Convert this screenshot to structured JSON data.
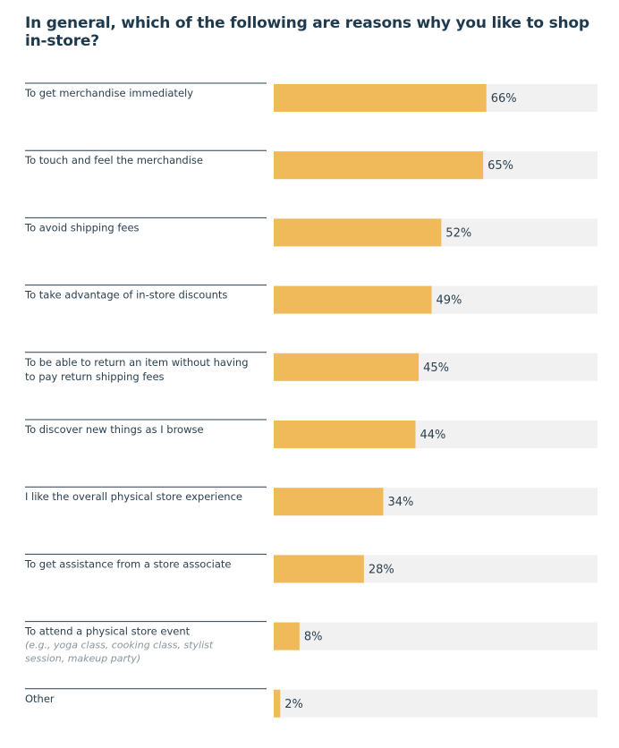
{
  "chart_data": {
    "type": "bar",
    "orientation": "horizontal",
    "title": "In general, which of the following are reasons why you like to shop in-store?",
    "xlim": [
      0,
      100
    ],
    "value_suffix": "%",
    "colors": {
      "bar": "#f0b95a",
      "track": "#f1f1f1",
      "rule": "#2a3f50"
    },
    "categories": [
      {
        "lines": [
          "To get merchandise immediately"
        ],
        "note": [],
        "value": 66
      },
      {
        "lines": [
          "To touch and feel the merchandise"
        ],
        "note": [],
        "value": 65
      },
      {
        "lines": [
          "To avoid shipping fees"
        ],
        "note": [],
        "value": 52
      },
      {
        "lines": [
          "To take advantage of in-store discounts"
        ],
        "note": [],
        "value": 49
      },
      {
        "lines": [
          "To be able to return an item without having",
          "to pay return shipping fees"
        ],
        "note": [],
        "value": 45
      },
      {
        "lines": [
          "To discover new things as I browse"
        ],
        "note": [],
        "value": 44
      },
      {
        "lines": [
          "I like the overall physical store experience"
        ],
        "note": [],
        "value": 34
      },
      {
        "lines": [
          "To get assistance from a store associate"
        ],
        "note": [],
        "value": 28
      },
      {
        "lines": [
          "To attend a physical store event"
        ],
        "note": [
          "(e.g., yoga class, cooking class, stylist",
          "session, makeup party)"
        ],
        "value": 8
      },
      {
        "lines": [
          "Other"
        ],
        "note": [],
        "value": 2
      }
    ]
  }
}
